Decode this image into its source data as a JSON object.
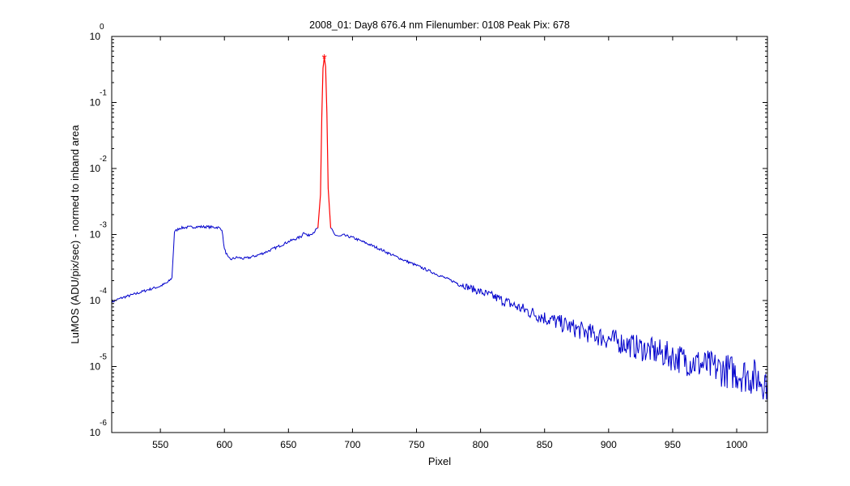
{
  "chart_data": {
    "type": "line",
    "title": "2008_01: Day8  676.4 nm  Filenumber: 0108 Peak Pix: 678",
    "xlabel": "Pixel",
    "ylabel": "LuMOS (ADU/pix/sec) - normed to inband area",
    "xlim": [
      512,
      1024
    ],
    "ylim": [
      1e-06,
      1
    ],
    "yscale": "log",
    "grid": false,
    "x_ticks": [
      550,
      600,
      650,
      700,
      750,
      800,
      850,
      900,
      950,
      1000
    ],
    "y_ticks": [
      {
        "value": 1,
        "base": "10",
        "exponent": "0"
      },
      {
        "value": 0.1,
        "base": "10",
        "exponent": "-1"
      },
      {
        "value": 0.01,
        "base": "10",
        "exponent": "-2"
      },
      {
        "value": 0.001,
        "base": "10",
        "exponent": "-3"
      },
      {
        "value": 0.0001,
        "base": "10",
        "exponent": "-4"
      },
      {
        "value": 1e-05,
        "base": "10",
        "exponent": "-5"
      },
      {
        "value": 1e-06,
        "base": "10",
        "exponent": "-6"
      }
    ],
    "series": [
      {
        "color": "#0000cc",
        "segments": [
          {
            "x": [
              512,
              520,
              530,
              540,
              550,
              556,
              559,
              561,
              565,
              570,
              575,
              580,
              585,
              590,
              595,
              598,
              600,
              603,
              605,
              610,
              615,
              620,
              625,
              630,
              635,
              640,
              645,
              650,
              655,
              660,
              662,
              665,
              670,
              673
            ],
            "y": [
              9.5e-05,
              0.00011,
              0.000125,
              0.000145,
              0.000165,
              0.00019,
              0.00022,
              0.0011,
              0.00125,
              0.00128,
              0.0013,
              0.00131,
              0.00131,
              0.00129,
              0.00128,
              0.0012,
              0.0006,
              0.00044,
              0.00042,
              0.00045,
              0.00043,
              0.00045,
              0.00048,
              0.00052,
              0.00057,
              0.00063,
              0.0007,
              0.00078,
              0.00085,
              0.00093,
              0.0011,
              0.00095,
              0.0011,
              0.00125
            ]
          },
          {
            "x": [
              683,
              686,
              690,
              693,
              695,
              700,
              710,
              720,
              730,
              740,
              750,
              760,
              770,
              780,
              790,
              800,
              810,
              820,
              830,
              840,
              850,
              860,
              870,
              880,
              890,
              900,
              910,
              920,
              930,
              940,
              950,
              960,
              970,
              980,
              990,
              1000,
              1010,
              1020,
              1024
            ],
            "y": [
              0.00125,
              0.001,
              0.00093,
              0.00098,
              0.00095,
              0.0009,
              0.00075,
              0.00062,
              0.0005,
              0.00041,
              0.00034,
              0.00028,
              0.00023,
              0.00019,
              0.00016,
              0.000135,
              0.000115,
              9.5e-05,
              7.8e-05,
              6.5e-05,
              5.5e-05,
              4.7e-05,
              4e-05,
              3.4e-05,
              3e-05,
              2.6e-05,
              2.3e-05,
              2e-05,
              1.8e-05,
              1.6e-05,
              1.4e-05,
              1.25e-05,
              1.1e-05,
              9.8e-06,
              8.8e-06,
              8e-06,
              7.2e-06,
              6.3e-06,
              6e-06
            ]
          }
        ]
      },
      {
        "color": "#ff0000",
        "x": [
          673,
          675,
          676,
          677,
          678,
          679,
          680,
          681,
          683
        ],
        "y": [
          0.00125,
          0.004,
          0.06,
          0.33,
          0.48,
          0.35,
          0.07,
          0.005,
          0.00125
        ]
      }
    ],
    "peak_marker": {
      "x": 678,
      "y": 0.48,
      "symbol": "*",
      "color": "#ff0000"
    }
  }
}
